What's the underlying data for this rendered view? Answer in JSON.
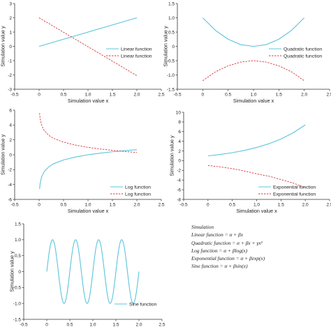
{
  "colors": {
    "solid": "#5bc4dc",
    "dashed": "#d6333a",
    "axis": "#333333"
  },
  "formula_box": {
    "title": "Simulation",
    "lines": [
      "Linear function = α + βx",
      "Quadratic function = α + βx + γx²",
      "Log function = α + βlog(x)",
      "Exponential function = α + βexp(x)",
      "Sine function = α + βsin(x)"
    ]
  },
  "chart_data": [
    {
      "type": "line",
      "xlabel": "Simulation value x",
      "ylabel": "Simulation value y",
      "xlim": [
        -0.5,
        2.5
      ],
      "ylim": [
        -3,
        3
      ],
      "xticks": [
        "-0.5",
        "0",
        "0.5",
        "1.0",
        "1.5",
        "2.0",
        "2.5"
      ],
      "yticks": [
        "3",
        "2",
        "1",
        "0",
        "-1",
        "-2",
        "-3"
      ],
      "legend_position": "center-right",
      "series": [
        {
          "name": "Linear function",
          "style": "solid",
          "x": [
            0,
            2
          ],
          "y": [
            0.0,
            2.0
          ]
        },
        {
          "name": "Linear function",
          "style": "dashed",
          "x": [
            0,
            2
          ],
          "y": [
            2.0,
            -2.05
          ]
        }
      ]
    },
    {
      "type": "line",
      "xlabel": "Simulation value x",
      "ylabel": "Simulation value y",
      "xlim": [
        -0.5,
        2.5
      ],
      "ylim": [
        -1.5,
        1.5
      ],
      "xticks": [
        "-0.5",
        "0",
        "0.5",
        "1.0",
        "1.5",
        "2.0",
        "2.5"
      ],
      "yticks": [
        "1.5",
        "1.0",
        "0.5",
        "0",
        "-0.5",
        "-1.0",
        "-1.5"
      ],
      "legend_position": "center-right",
      "series": [
        {
          "name": "Quadratic function",
          "style": "solid",
          "x": [
            0,
            0.25,
            0.5,
            0.75,
            1.0,
            1.25,
            1.5,
            1.75,
            2.0
          ],
          "y": [
            1.0,
            0.56,
            0.25,
            0.06,
            0.0,
            0.06,
            0.25,
            0.56,
            1.0
          ]
        },
        {
          "name": "Quadratic function",
          "style": "dashed",
          "x": [
            0,
            0.25,
            0.5,
            0.75,
            1.0,
            1.25,
            1.5,
            1.75,
            2.0
          ],
          "y": [
            -1.2,
            -0.89,
            -0.68,
            -0.55,
            -0.5,
            -0.55,
            -0.68,
            -0.89,
            -1.2
          ]
        }
      ]
    },
    {
      "type": "line",
      "xlabel": "Simulation value x",
      "ylabel": "Simulation value y",
      "xlim": [
        -0.5,
        2.5
      ],
      "ylim": [
        -6,
        6
      ],
      "xticks": [
        "-0.5",
        "0",
        "0.5",
        "1.0",
        "1.5",
        "2.0",
        "2.5"
      ],
      "yticks": [
        "6",
        "4",
        "2",
        "0",
        "-2",
        "-4",
        "-6"
      ],
      "legend_position": "bottom-right",
      "series": [
        {
          "name": "Log function",
          "style": "solid",
          "x": [
            0.01,
            0.02,
            0.05,
            0.1,
            0.2,
            0.3,
            0.5,
            0.75,
            1.0,
            1.25,
            1.5,
            1.75,
            2.0
          ],
          "y": [
            -4.6,
            -3.9,
            -3.0,
            -2.3,
            -1.61,
            -1.2,
            -0.69,
            -0.29,
            0.0,
            0.22,
            0.41,
            0.56,
            0.69
          ]
        },
        {
          "name": "Log function",
          "style": "dashed",
          "x": [
            0.01,
            0.02,
            0.05,
            0.1,
            0.2,
            0.3,
            0.5,
            0.75,
            1.0,
            1.25,
            1.5,
            1.75,
            2.0
          ],
          "y": [
            5.6,
            4.9,
            4.0,
            3.3,
            2.6,
            2.2,
            1.7,
            1.3,
            1.0,
            0.78,
            0.6,
            0.44,
            0.31
          ]
        }
      ]
    },
    {
      "type": "line",
      "xlabel": "Simulation value x",
      "ylabel": "Simulation value y",
      "xlim": [
        -0.5,
        2.5
      ],
      "ylim": [
        -8,
        10
      ],
      "xticks": [
        "-0.5",
        "0",
        "0.5",
        "1.0",
        "1.5",
        "2.0",
        "2.5"
      ],
      "yticks": [
        "10",
        "8",
        "6",
        "4",
        "2",
        "0",
        "-2",
        "-4",
        "-6",
        "-8"
      ],
      "legend_position": "bottom-right",
      "series": [
        {
          "name": "Exponential function",
          "style": "solid",
          "x": [
            0,
            0.25,
            0.5,
            0.75,
            1.0,
            1.25,
            1.5,
            1.75,
            2.0
          ],
          "y": [
            1.0,
            1.28,
            1.65,
            2.12,
            2.72,
            3.49,
            4.48,
            5.75,
            7.39
          ]
        },
        {
          "name": "Exponential function",
          "style": "dashed",
          "x": [
            0,
            0.25,
            0.5,
            0.75,
            1.0,
            1.25,
            1.5,
            1.75,
            2.0
          ],
          "y": [
            -1.0,
            -1.28,
            -1.65,
            -2.12,
            -2.72,
            -3.2,
            -3.9,
            -4.6,
            -5.6
          ]
        }
      ]
    },
    {
      "type": "line",
      "xlabel": "Simulation value x",
      "ylabel": "Simulation value y",
      "xlim": [
        -0.5,
        2.5
      ],
      "ylim": [
        -1.5,
        1.5
      ],
      "xticks": [
        "-0.5",
        "0",
        "0.5",
        "1.0",
        "1.5",
        "2.0",
        "2.5"
      ],
      "yticks": [
        "1.5",
        "1.0",
        "0.5",
        "0",
        "-0.5",
        "-1.0",
        "-1.5"
      ],
      "legend_position": "bottom-right",
      "series": [
        {
          "name": "Sine function",
          "style": "solid",
          "function": "sin",
          "frequency_cycles_per_unit": 2.0,
          "amplitude": 1.0,
          "x_start": 0.0,
          "x_end": 2.0
        }
      ]
    }
  ]
}
